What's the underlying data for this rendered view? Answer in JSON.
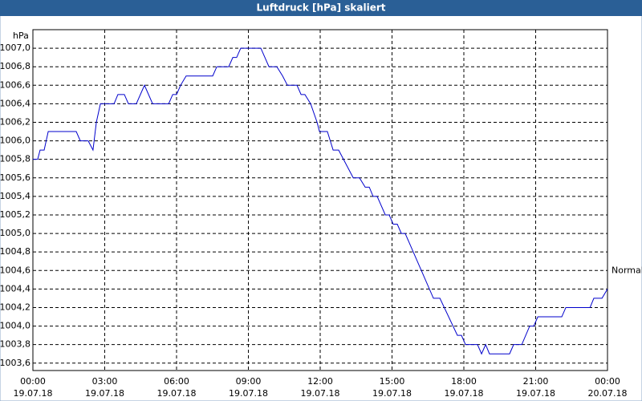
{
  "chart_data": {
    "type": "line",
    "title": "Luftdruck [hPa] skaliert",
    "y_unit": "hPa",
    "annotations": [
      {
        "text": "Normal",
        "y": 1004.6
      }
    ],
    "grid": true,
    "xlim": [
      0,
      24
    ],
    "xticks": [
      {
        "value": 0,
        "label": [
          "00:00",
          "19.07.18"
        ]
      },
      {
        "value": 3,
        "label": [
          "03:00",
          "19.07.18"
        ]
      },
      {
        "value": 6,
        "label": [
          "06:00",
          "19.07.18"
        ]
      },
      {
        "value": 9,
        "label": [
          "09:00",
          "19.07.18"
        ]
      },
      {
        "value": 12,
        "label": [
          "12:00",
          "19.07.18"
        ]
      },
      {
        "value": 15,
        "label": [
          "15:00",
          "19.07.18"
        ]
      },
      {
        "value": 18,
        "label": [
          "18:00",
          "19.07.18"
        ]
      },
      {
        "value": 21,
        "label": [
          "21:00",
          "19.07.18"
        ]
      },
      {
        "value": 24,
        "label": [
          "00:00",
          "20.07.18"
        ]
      }
    ],
    "ylim": [
      1003.52,
      1007.2
    ],
    "yticks": [
      {
        "value": 1003.6,
        "label": "1003,6"
      },
      {
        "value": 1003.8,
        "label": "1003,8"
      },
      {
        "value": 1004.0,
        "label": "1004,0"
      },
      {
        "value": 1004.2,
        "label": "1004,2"
      },
      {
        "value": 1004.4,
        "label": "1004,4"
      },
      {
        "value": 1004.6,
        "label": "1004,6"
      },
      {
        "value": 1004.8,
        "label": "1004,8"
      },
      {
        "value": 1005.0,
        "label": "1005,0"
      },
      {
        "value": 1005.2,
        "label": "1005,2"
      },
      {
        "value": 1005.4,
        "label": "1005,4"
      },
      {
        "value": 1005.6,
        "label": "1005,6"
      },
      {
        "value": 1005.8,
        "label": "1005,8"
      },
      {
        "value": 1006.0,
        "label": "1006,0"
      },
      {
        "value": 1006.2,
        "label": "1006,2"
      },
      {
        "value": 1006.4,
        "label": "1006,4"
      },
      {
        "value": 1006.6,
        "label": "1006,6"
      },
      {
        "value": 1006.8,
        "label": "1006,8"
      },
      {
        "value": 1007.0,
        "label": "1007,0"
      }
    ],
    "series": [
      {
        "name": "Luftdruck",
        "color": "#0000cc",
        "x": [
          0,
          0.2,
          0.3,
          0.47,
          0.64,
          1.81,
          1.98,
          2.31,
          2.51,
          2.65,
          2.82,
          3.39,
          3.55,
          3.82,
          3.99,
          4.32,
          4.66,
          5.0,
          5.67,
          5.84,
          6.0,
          6.17,
          6.4,
          7.51,
          7.68,
          8.18,
          8.35,
          8.51,
          8.68,
          9.52,
          9.86,
          10.19,
          10.43,
          10.63,
          11.03,
          11.2,
          11.36,
          11.6,
          11.87,
          11.97,
          12.3,
          12.54,
          12.77,
          13.38,
          13.64,
          13.88,
          14.05,
          14.21,
          14.38,
          14.72,
          14.88,
          15.05,
          15.22,
          15.39,
          15.55,
          16.73,
          17.0,
          17.73,
          17.9,
          18.07,
          18.57,
          18.74,
          18.91,
          19.07,
          19.91,
          20.08,
          20.42,
          20.75,
          20.92,
          21.09,
          22.09,
          22.26,
          23.27,
          23.43,
          23.77,
          24.0
        ],
        "values": [
          1005.8,
          1005.8,
          1005.9,
          1005.9,
          1006.1,
          1006.1,
          1006.0,
          1006.0,
          1005.9,
          1006.2,
          1006.4,
          1006.4,
          1006.5,
          1006.5,
          1006.4,
          1006.4,
          1006.6,
          1006.4,
          1006.4,
          1006.5,
          1006.5,
          1006.6,
          1006.7,
          1006.7,
          1006.8,
          1006.8,
          1006.9,
          1006.9,
          1007.0,
          1007.0,
          1006.8,
          1006.8,
          1006.7,
          1006.6,
          1006.6,
          1006.5,
          1006.5,
          1006.4,
          1006.2,
          1006.1,
          1006.1,
          1005.9,
          1005.9,
          1005.6,
          1005.6,
          1005.5,
          1005.5,
          1005.4,
          1005.4,
          1005.2,
          1005.2,
          1005.1,
          1005.1,
          1005.0,
          1005.0,
          1004.3,
          1004.3,
          1003.9,
          1003.9,
          1003.8,
          1003.8,
          1003.7,
          1003.8,
          1003.7,
          1003.7,
          1003.8,
          1003.8,
          1004.0,
          1004.0,
          1004.1,
          1004.1,
          1004.2,
          1004.2,
          1004.3,
          1004.3,
          1004.4
        ]
      }
    ]
  }
}
